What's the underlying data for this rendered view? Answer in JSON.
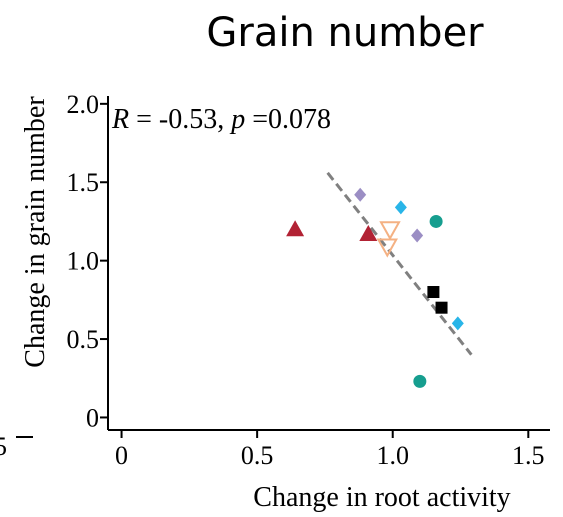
{
  "chart_data": {
    "type": "scatter",
    "title": "Grain number",
    "xlabel": "Change  in root activity",
    "ylabel": "Change  in grain number",
    "xlim": [
      -0.05,
      1.58
    ],
    "ylim": [
      -0.08,
      2.05
    ],
    "xticks": [
      "0",
      "0.5",
      "1.0",
      "1.5"
    ],
    "yticks": [
      "0",
      "0.5",
      "1.0",
      "1.5",
      "2.0"
    ],
    "annotation": {
      "r_part": "R",
      "r_text": " = -0.53, ",
      "p_part": "p",
      "p_text": " =0.078"
    },
    "edge_tick_label": "5",
    "grid": false,
    "colors": {
      "red": "#b22234",
      "purple": "#9b8ec4",
      "cyan": "#29b5e8",
      "teal": "#169e8f",
      "black": "#000000",
      "orange": "#f4b183",
      "line": "#808080"
    },
    "points": [
      {
        "x": 0.64,
        "y": 1.2,
        "marker": "triangle",
        "color": "red"
      },
      {
        "x": 0.91,
        "y": 1.17,
        "marker": "triangle",
        "color": "red"
      },
      {
        "x": 0.88,
        "y": 1.42,
        "marker": "diamond",
        "color": "purple"
      },
      {
        "x": 1.09,
        "y": 1.16,
        "marker": "diamond",
        "color": "purple"
      },
      {
        "x": 1.03,
        "y": 1.34,
        "marker": "diamond",
        "color": "cyan"
      },
      {
        "x": 1.24,
        "y": 0.6,
        "marker": "diamond",
        "color": "cyan"
      },
      {
        "x": 1.16,
        "y": 1.25,
        "marker": "circle",
        "color": "teal"
      },
      {
        "x": 1.1,
        "y": 0.23,
        "marker": "circle",
        "color": "teal"
      },
      {
        "x": 1.15,
        "y": 0.8,
        "marker": "square",
        "color": "black"
      },
      {
        "x": 1.18,
        "y": 0.7,
        "marker": "square",
        "color": "black"
      },
      {
        "x": 0.99,
        "y": 1.2,
        "marker": "triangle-down",
        "color": "orange"
      },
      {
        "x": 0.98,
        "y": 1.09,
        "marker": "triangle-down",
        "color": "orange"
      }
    ],
    "trend_line": {
      "x": [
        0.76,
        1.29
      ],
      "y": [
        1.56,
        0.4
      ],
      "style": "dashed"
    }
  }
}
